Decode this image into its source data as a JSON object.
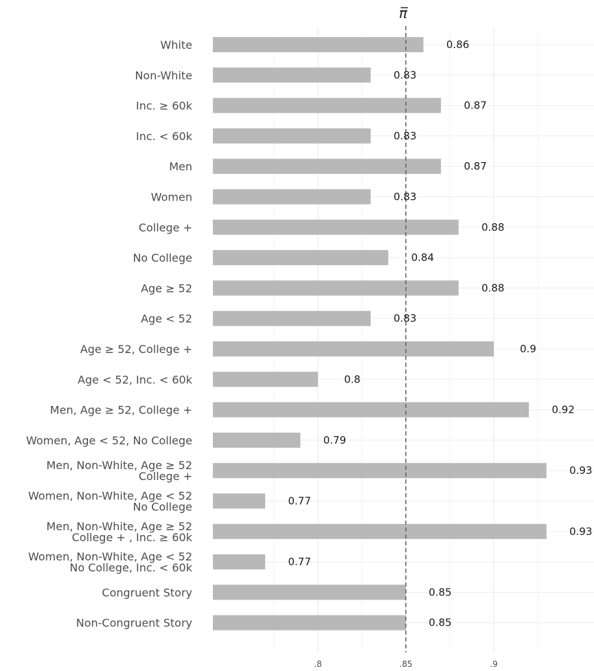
{
  "chart_data": {
    "type": "bar",
    "orientation": "horizontal",
    "title": "",
    "xlabel": "",
    "ylabel": "",
    "categories": [
      "White",
      "Non-White",
      "Inc. ≥ 60k",
      "Inc. < 60k",
      "Men",
      "Women",
      "College +",
      "No College",
      "Age ≥ 52",
      "Age < 52",
      "Age ≥ 52, College +",
      "Age < 52, Inc. < 60k",
      "Men, Age ≥ 52, College +",
      "Women, Age < 52, No College",
      "Men, Non-White, Age ≥ 52\nCollege +",
      "Women, Non-White, Age < 52\nNo College",
      "Men, Non-White, Age ≥ 52\nCollege + , Inc. ≥ 60k",
      "Women, Non-White, Age < 52\nNo College, Inc. < 60k",
      "Congruent Story",
      "Non-Congruent Story"
    ],
    "values": [
      0.86,
      0.83,
      0.87,
      0.83,
      0.87,
      0.83,
      0.88,
      0.84,
      0.88,
      0.83,
      0.9,
      0.8,
      0.92,
      0.79,
      0.93,
      0.77,
      0.93,
      0.77,
      0.85,
      0.85
    ],
    "value_labels": [
      "0.86",
      "0.83",
      "0.87",
      "0.83",
      "0.87",
      "0.83",
      "0.88",
      "0.84",
      "0.88",
      "0.83",
      "0.9",
      "0.8",
      "0.92",
      "0.79",
      "0.93",
      "0.77",
      "0.93",
      "0.77",
      "0.85",
      "0.85"
    ],
    "xlim": [
      0.74,
      0.96
    ],
    "xticks": [
      0.8,
      0.85,
      0.9
    ],
    "xtick_labels": [
      ".8",
      ".85",
      ".9"
    ],
    "reference_line": {
      "value": 0.85,
      "label": "π̅",
      "style": "dashed"
    },
    "grid": true,
    "legend": "none",
    "bar_color": "#b8b8b8",
    "grid_color": "#ebebeb",
    "reference_line_color": "#666666"
  }
}
